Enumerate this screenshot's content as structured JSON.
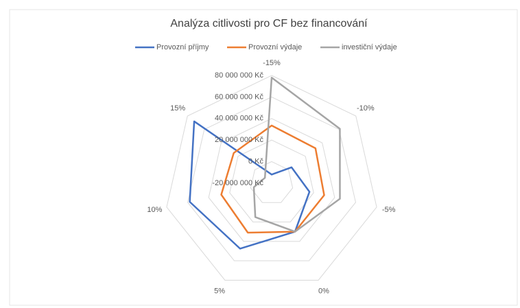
{
  "chart_data": {
    "type": "radar",
    "title": "Analýza citlivosti pro CF bez financování",
    "categories": [
      "-15%",
      "-10%",
      "-5%",
      "0%",
      "5%",
      "10%",
      "15%"
    ],
    "series": [
      {
        "name": "Provozní příjmy",
        "color": "#4472c4",
        "values": [
          -12000000,
          3600000,
          16000000,
          30000000,
          47500000,
          58000000,
          72000000
        ]
      },
      {
        "name": "Provozní výdaje",
        "color": "#ed7d31",
        "values": [
          33500000,
          32000000,
          30000000,
          30000000,
          31000000,
          28000000,
          25000000
        ]
      },
      {
        "name": "investiční výdaje",
        "color": "#a5a5a5",
        "values": [
          78000000,
          61000000,
          45000000,
          30000000,
          15000000,
          -3000000,
          -12000000
        ]
      }
    ],
    "ylim": [
      -20000000,
      80000000
    ],
    "yticks": [
      {
        "value": -20000000,
        "label": "-20 000 000 Kč"
      },
      {
        "value": 0,
        "label": "0 Kč"
      },
      {
        "value": 20000000,
        "label": "20 000 000 Kč"
      },
      {
        "value": 40000000,
        "label": "40 000 000 Kč"
      },
      {
        "value": 60000000,
        "label": "60 000 000 Kč"
      },
      {
        "value": 80000000,
        "label": "80 000 000 Kč"
      }
    ],
    "grid": true,
    "legend": "top"
  }
}
